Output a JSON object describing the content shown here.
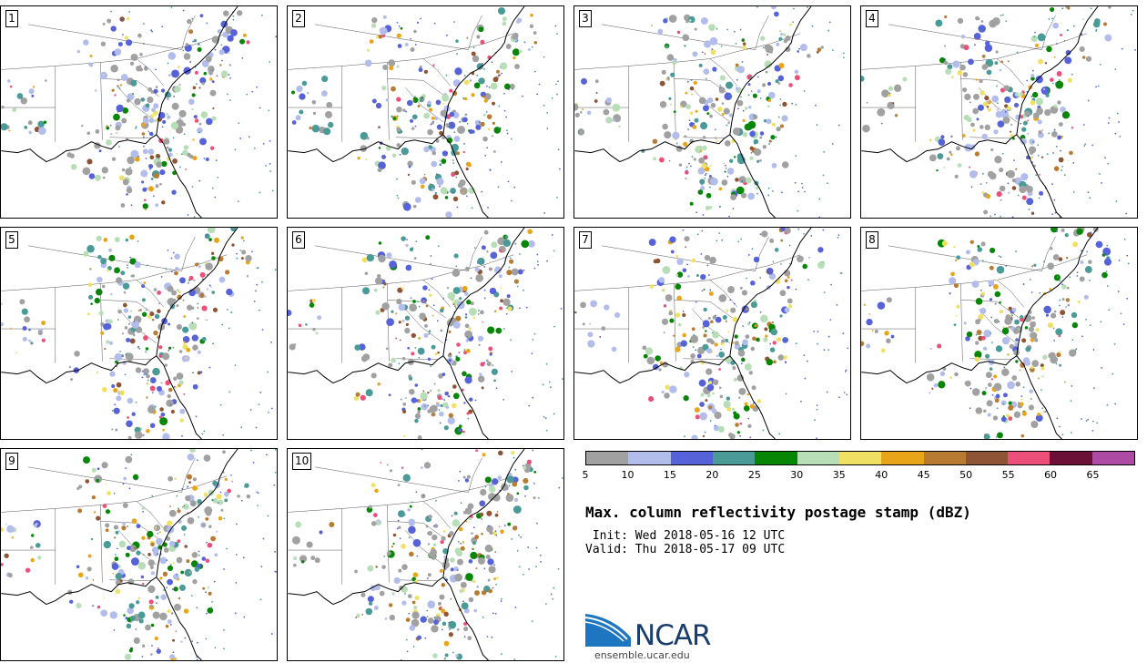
{
  "panels": [
    {
      "label": "1"
    },
    {
      "label": "2"
    },
    {
      "label": "3"
    },
    {
      "label": "4"
    },
    {
      "label": "5"
    },
    {
      "label": "6"
    },
    {
      "label": "7"
    },
    {
      "label": "8"
    },
    {
      "label": "9"
    },
    {
      "label": "10"
    }
  ],
  "colorbar": {
    "colors": [
      "#a1a1a1",
      "#b3bdec",
      "#5662d8",
      "#4a9a98",
      "#078606",
      "#b8deb8",
      "#f0e165",
      "#e9a519",
      "#b77b32",
      "#8e5436",
      "#ec4f79",
      "#6b1137",
      "#ad4aa3"
    ],
    "ticks": [
      "5",
      "10",
      "15",
      "20",
      "25",
      "30",
      "35",
      "40",
      "45",
      "50",
      "55",
      "60",
      "65"
    ]
  },
  "title": "Max. column reflectivity postage stamp (dBZ)",
  "init": " Init: Wed 2018-05-16 12 UTC",
  "valid": "Valid: Thu 2018-05-17 09 UTC",
  "logo": {
    "text": "NCAR",
    "url": "ensemble.ucar.edu",
    "swoosh_color": "#1f76c0"
  }
}
